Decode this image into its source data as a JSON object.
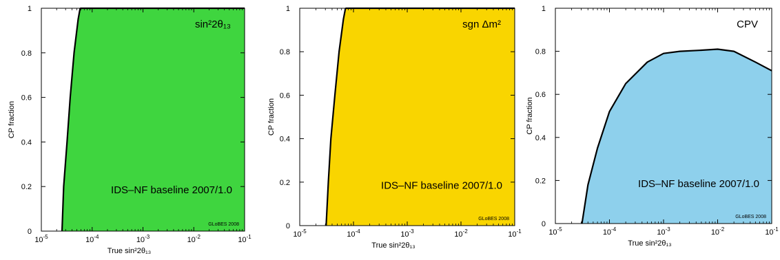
{
  "chart_data": [
    {
      "type": "area",
      "panel_label": "sin²2θ₁₃",
      "annotation": "IDS–NF baseline 2007/1.0",
      "credit": "GLoBES 2008",
      "xlabel": "True sin²2θ₁₃",
      "ylabel": "CP fraction",
      "x_scale": "log",
      "xlim": [
        1e-05,
        0.1
      ],
      "ylim": [
        0,
        1
      ],
      "x_ticks": [
        1e-05,
        0.0001,
        0.001,
        0.01,
        0.1
      ],
      "x_tick_labels": [
        [
          "10",
          "-5"
        ],
        [
          "10",
          "-4"
        ],
        [
          "10",
          "-3"
        ],
        [
          "10",
          "-2"
        ],
        [
          "10",
          "-1"
        ]
      ],
      "y_ticks": [
        0,
        0.2,
        0.4,
        0.6,
        0.8,
        1
      ],
      "y_tick_labels": [
        "0",
        "0.2",
        "0.4",
        "0.6",
        "0.8",
        "1"
      ],
      "fill_color": "#3fd53f",
      "boundary": [
        {
          "x": 2.55e-05,
          "y": 0
        },
        {
          "x": 2.75e-05,
          "y": 0.2
        },
        {
          "x": 3.2e-05,
          "y": 0.4
        },
        {
          "x": 3.7e-05,
          "y": 0.6
        },
        {
          "x": 4.4e-05,
          "y": 0.8
        },
        {
          "x": 5.3e-05,
          "y": 0.95
        },
        {
          "x": 5.8e-05,
          "y": 1.0
        }
      ]
    },
    {
      "type": "area",
      "panel_label": "sgn Δm²",
      "annotation": "IDS–NF baseline 2007/1.0",
      "credit": "GLoBES 2008",
      "xlabel": "True sin²2θ₁₃",
      "ylabel": "CP fraction",
      "x_scale": "log",
      "xlim": [
        1e-05,
        0.1
      ],
      "ylim": [
        0,
        1
      ],
      "x_ticks": [
        1e-05,
        0.0001,
        0.001,
        0.01,
        0.1
      ],
      "x_tick_labels": [
        [
          "10",
          "-5"
        ],
        [
          "10",
          "-4"
        ],
        [
          "10",
          "-3"
        ],
        [
          "10",
          "-2"
        ],
        [
          "10",
          "-1"
        ]
      ],
      "y_ticks": [
        0,
        0.2,
        0.4,
        0.6,
        0.8,
        1
      ],
      "y_tick_labels": [
        "0",
        "0.2",
        "0.4",
        "0.6",
        "0.8",
        "1"
      ],
      "fill_color": "#f9d500",
      "boundary": [
        {
          "x": 3.1e-05,
          "y": 0
        },
        {
          "x": 3.4e-05,
          "y": 0.2
        },
        {
          "x": 3.8e-05,
          "y": 0.4
        },
        {
          "x": 4.5e-05,
          "y": 0.6
        },
        {
          "x": 5.4e-05,
          "y": 0.8
        },
        {
          "x": 6.5e-05,
          "y": 0.95
        },
        {
          "x": 7.1e-05,
          "y": 1.0
        }
      ]
    },
    {
      "type": "area",
      "panel_label": "CPV",
      "annotation": "IDS–NF baseline 2007/1.0",
      "credit": "GLoBES 2008",
      "xlabel": "True sin²2θ₁₃",
      "ylabel": "CP fraction",
      "x_scale": "log",
      "xlim": [
        1e-05,
        0.1
      ],
      "ylim": [
        0,
        1
      ],
      "x_ticks": [
        1e-05,
        0.0001,
        0.001,
        0.01,
        0.1
      ],
      "x_tick_labels": [
        [
          "10",
          "-5"
        ],
        [
          "10",
          "-4"
        ],
        [
          "10",
          "-3"
        ],
        [
          "10",
          "-2"
        ],
        [
          "10",
          "-1"
        ]
      ],
      "y_ticks": [
        0,
        0.2,
        0.4,
        0.6,
        0.8,
        1
      ],
      "y_tick_labels": [
        "0",
        "0.2",
        "0.4",
        "0.6",
        "0.8",
        "1"
      ],
      "fill_color": "#8ed0ec",
      "boundary": [
        {
          "x": 3.1e-05,
          "y": 0
        },
        {
          "x": 4e-05,
          "y": 0.18
        },
        {
          "x": 6e-05,
          "y": 0.35
        },
        {
          "x": 0.0001,
          "y": 0.52
        },
        {
          "x": 0.0002,
          "y": 0.65
        },
        {
          "x": 0.0005,
          "y": 0.75
        },
        {
          "x": 0.001,
          "y": 0.79
        },
        {
          "x": 0.002,
          "y": 0.8
        },
        {
          "x": 0.005,
          "y": 0.805
        },
        {
          "x": 0.01,
          "y": 0.81
        },
        {
          "x": 0.02,
          "y": 0.8
        },
        {
          "x": 0.05,
          "y": 0.75
        },
        {
          "x": 0.1,
          "y": 0.71
        }
      ]
    }
  ]
}
